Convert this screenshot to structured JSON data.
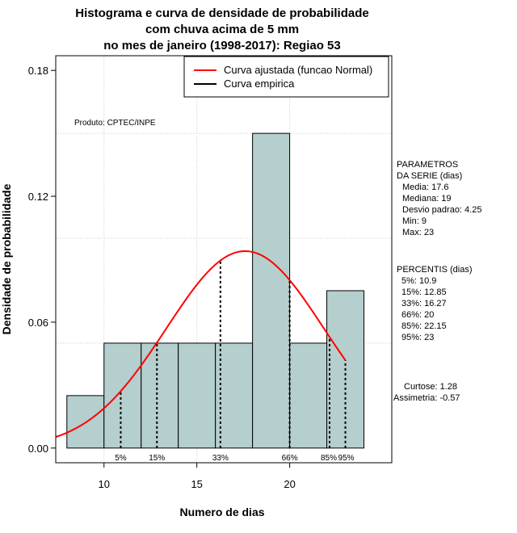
{
  "chart_data": {
    "type": "bar",
    "title_lines": [
      "Histograma e curva de densidade de probabilidade",
      "com chuva acima de 5 mm",
      "no mes de janeiro (1998-2017): Regiao 53"
    ],
    "xlabel": "Numero de dias",
    "ylabel": "Densidade de probabilidade",
    "xlim": [
      7.4,
      25.5
    ],
    "ylim": [
      -0.007,
      0.187
    ],
    "xticks": [
      10,
      15,
      20
    ],
    "yticks": [
      0.0,
      0.06,
      0.12,
      0.18
    ],
    "ytick_labels": [
      "0.00",
      "0.06",
      "0.12",
      "0.18"
    ],
    "bins": [
      {
        "x0": 8,
        "x1": 10,
        "density": 0.025
      },
      {
        "x0": 10,
        "x1": 12,
        "density": 0.05
      },
      {
        "x0": 12,
        "x1": 14,
        "density": 0.05
      },
      {
        "x0": 14,
        "x1": 16,
        "density": 0.05
      },
      {
        "x0": 16,
        "x1": 18,
        "density": 0.05
      },
      {
        "x0": 18,
        "x1": 20,
        "density": 0.15
      },
      {
        "x0": 20,
        "x1": 22,
        "density": 0.05
      },
      {
        "x0": 22,
        "x1": 24,
        "density": 0.075
      }
    ],
    "bar_color": "#b5cece",
    "curve_color": "#ff0000",
    "normal": {
      "mean": 17.6,
      "sd": 4.25,
      "x_from": 7.4,
      "x_to": 23
    },
    "percentile_markers": [
      {
        "label": "5%",
        "x": 10.9
      },
      {
        "label": "15%",
        "x": 12.85
      },
      {
        "label": "33%",
        "x": 16.27
      },
      {
        "label": "66%",
        "x": 20
      },
      {
        "label": "85%",
        "x": 22.15
      },
      {
        "label": "95%",
        "x": 23
      }
    ],
    "hgrid": [
      0.05,
      0.1,
      0.15
    ],
    "legend": [
      {
        "label": "Curva ajustada (funcao Normal)",
        "color": "#ff0000"
      },
      {
        "label": "Curva empirica",
        "color": "#000000"
      }
    ],
    "legend_position": "top-right",
    "annotation": "Produto: CPTEC/INPE"
  },
  "side_panel": {
    "parametros": [
      "PARAMETROS",
      "DA SERIE (dias)",
      "Media: 17.6",
      "Mediana: 19",
      "Desvio padrao: 4.25",
      "Min: 9",
      "Max: 23"
    ],
    "percentis": [
      "PERCENTIS (dias)",
      "5%: 10.9",
      "15%: 12.85",
      "33%: 16.27",
      "66%: 20",
      "85%: 22.15",
      "95%: 23"
    ],
    "shape": [
      "Curtose: 1.28",
      "Assimetria: -0.57"
    ]
  }
}
